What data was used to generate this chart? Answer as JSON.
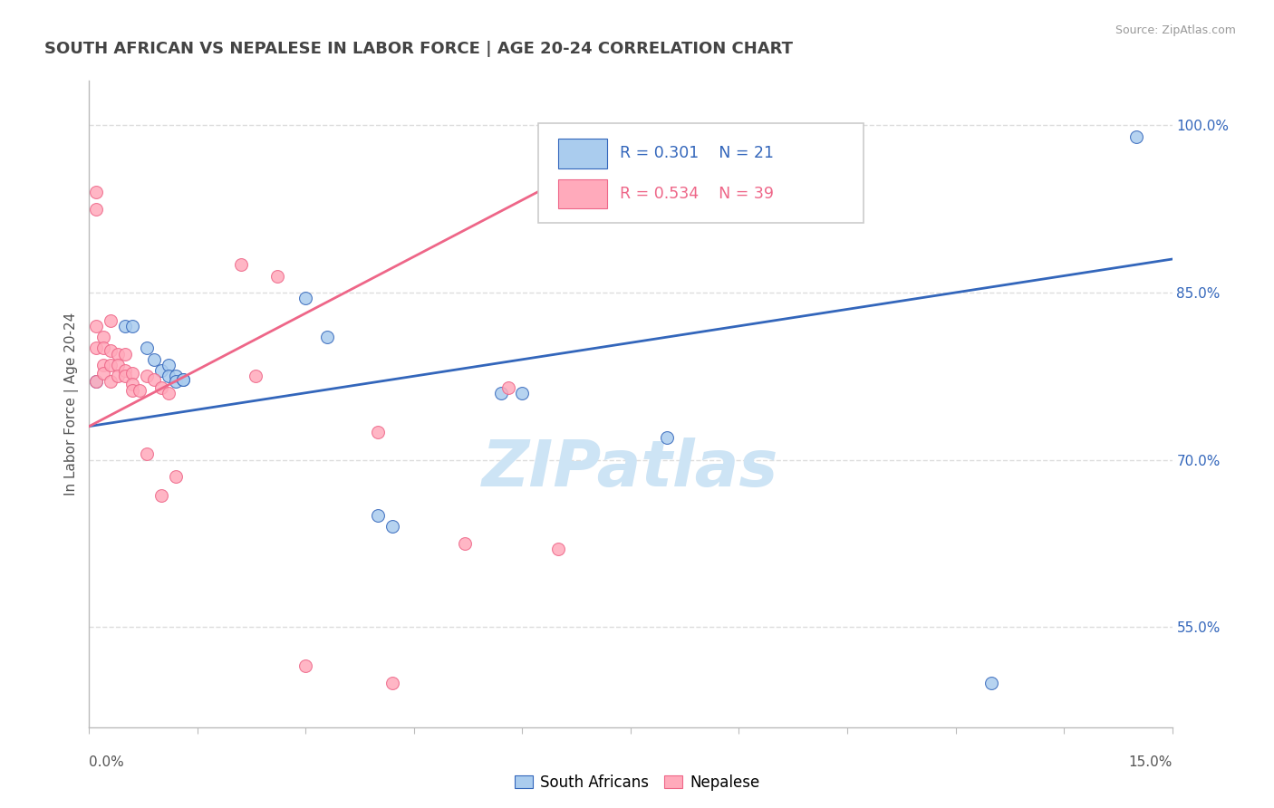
{
  "title": "SOUTH AFRICAN VS NEPALESE IN LABOR FORCE | AGE 20-24 CORRELATION CHART",
  "source_text": "Source: ZipAtlas.com",
  "ylabel": "In Labor Force | Age 20-24",
  "xlim": [
    0.0,
    0.15
  ],
  "ylim": [
    0.46,
    1.04
  ],
  "ytick_positions": [
    0.55,
    0.7,
    0.85,
    1.0
  ],
  "ytick_labels": [
    "55.0%",
    "70.0%",
    "85.0%",
    "100.0%"
  ],
  "blue_r": "0.301",
  "blue_n": "21",
  "pink_r": "0.534",
  "pink_n": "39",
  "blue_scatter_x": [
    0.001,
    0.005,
    0.006,
    0.008,
    0.009,
    0.01,
    0.011,
    0.011,
    0.012,
    0.012,
    0.013,
    0.013,
    0.03,
    0.033,
    0.04,
    0.042,
    0.057,
    0.06,
    0.08,
    0.125,
    0.145
  ],
  "blue_scatter_y": [
    0.77,
    0.82,
    0.82,
    0.8,
    0.79,
    0.78,
    0.785,
    0.775,
    0.775,
    0.77,
    0.772,
    0.772,
    0.845,
    0.81,
    0.65,
    0.64,
    0.76,
    0.76,
    0.72,
    0.5,
    0.99
  ],
  "pink_scatter_x": [
    0.001,
    0.001,
    0.001,
    0.001,
    0.001,
    0.002,
    0.002,
    0.002,
    0.002,
    0.003,
    0.003,
    0.003,
    0.003,
    0.004,
    0.004,
    0.004,
    0.005,
    0.005,
    0.005,
    0.006,
    0.006,
    0.006,
    0.007,
    0.008,
    0.008,
    0.009,
    0.01,
    0.01,
    0.011,
    0.012,
    0.021,
    0.023,
    0.026,
    0.03,
    0.04,
    0.042,
    0.052,
    0.058,
    0.065
  ],
  "pink_scatter_y": [
    0.94,
    0.925,
    0.82,
    0.8,
    0.77,
    0.81,
    0.8,
    0.785,
    0.778,
    0.825,
    0.798,
    0.785,
    0.77,
    0.795,
    0.785,
    0.775,
    0.795,
    0.78,
    0.775,
    0.778,
    0.768,
    0.762,
    0.762,
    0.705,
    0.775,
    0.772,
    0.765,
    0.668,
    0.76,
    0.685,
    0.875,
    0.775,
    0.865,
    0.515,
    0.725,
    0.5,
    0.625,
    0.765,
    0.62
  ],
  "blue_line_x": [
    0.0,
    0.15
  ],
  "blue_line_y": [
    0.73,
    0.88
  ],
  "pink_line_x": [
    0.0,
    0.065
  ],
  "pink_line_y": [
    0.73,
    0.95
  ],
  "blue_color": "#aaccee",
  "pink_color": "#ffaabb",
  "blue_line_color": "#3366bb",
  "pink_line_color": "#ee6688",
  "marker_size": 100,
  "title_color": "#444444",
  "source_color": "#999999",
  "axis_color": "#bbbbbb",
  "grid_color": "#dddddd",
  "watermark_text": "ZIPatlas",
  "watermark_color": "#cde4f5",
  "bottom_legend_items": [
    "South Africans",
    "Nepalese"
  ]
}
